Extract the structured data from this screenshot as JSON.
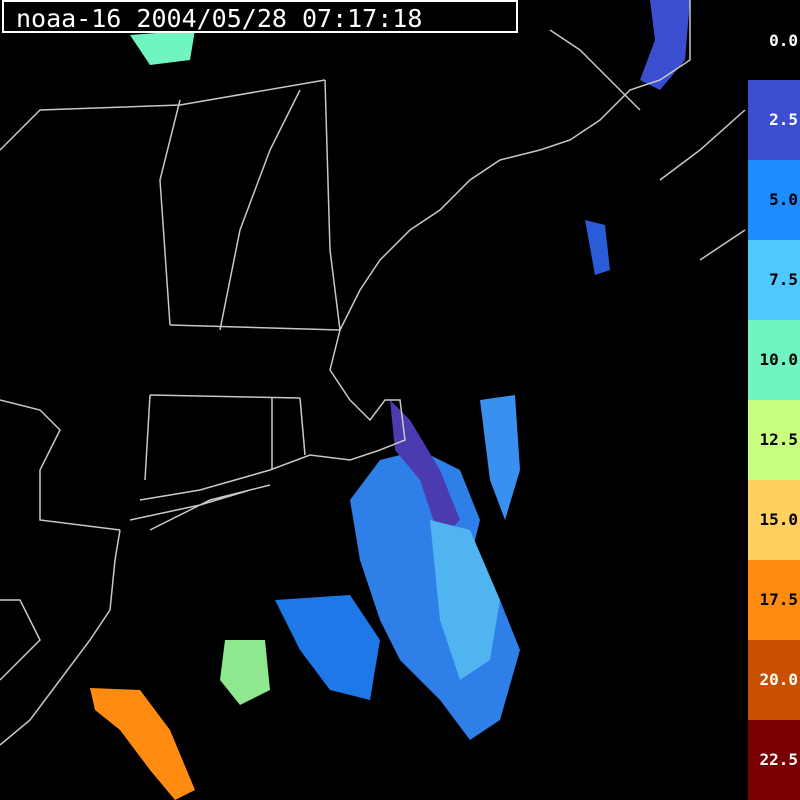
{
  "title": "noaa-16 2004/05/28 07:17:18",
  "legend": {
    "zero_label": "0.0",
    "bands": [
      {
        "label": "2.5",
        "color": "#3a4ecf",
        "text_color": "#ffffff"
      },
      {
        "label": "5.0",
        "color": "#1e8cff",
        "text_color": "#000000"
      },
      {
        "label": "7.5",
        "color": "#50c8ff",
        "text_color": "#000000"
      },
      {
        "label": "10.0",
        "color": "#70f5c0",
        "text_color": "#000000"
      },
      {
        "label": "12.5",
        "color": "#c8ff80",
        "text_color": "#000000"
      },
      {
        "label": "15.0",
        "color": "#ffd060",
        "text_color": "#000000"
      },
      {
        "label": "17.5",
        "color": "#ff8c10",
        "text_color": "#000000"
      },
      {
        "label": "20.0",
        "color": "#c85000",
        "text_color": "#ffffff"
      },
      {
        "label": "22.5",
        "color": "#780000",
        "text_color": "#ffffff"
      }
    ]
  },
  "colors": {
    "background": "#000000",
    "coastline": "#c8c8c8"
  }
}
